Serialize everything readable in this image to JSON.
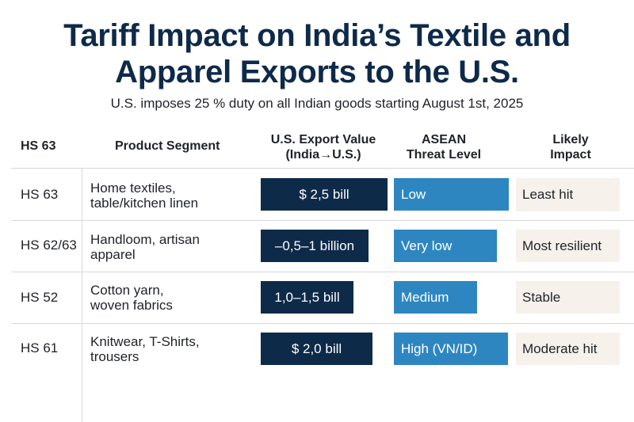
{
  "title_line1": "Tariff Impact on India’s Textile and",
  "title_line2": "Apparel Exports to the U.S.",
  "subtitle": "U.S. imposes 25 % duty on all Indian goods starting August 1st, 2025",
  "headers": {
    "hs": "HS 63",
    "segment": "Product Segment",
    "value_line1": "U.S. Export Value",
    "value_line2": "(India→U.S.)",
    "threat_line1": "ASEAN",
    "threat_line2": "Threat Level",
    "impact_line1": "Likely",
    "impact_line2": "Impact"
  },
  "rows": [
    {
      "hs": "HS 63",
      "segment_line1": "Home textiles,",
      "segment_line2": "table/kitchen linen",
      "value": "$ 2,5 bill",
      "threat": "Low",
      "impact": "Least hit"
    },
    {
      "hs": "HS 62/63",
      "segment_line1": "Handloom, artisan",
      "segment_line2": "apparel",
      "value": "–0,5–1 billion",
      "threat": "Very low",
      "impact": "Most resilient"
    },
    {
      "hs": "HS 52",
      "segment_line1": "Cotton yarn,",
      "segment_line2": "woven fabrics",
      "value": "1,0–1,5 bill",
      "threat": "Medium",
      "impact": "Stable"
    },
    {
      "hs": "HS 61",
      "segment_line1": "Knitwear, T-Shirts,",
      "segment_line2": "trousers",
      "value": "$ 2,0 bill",
      "threat": "High (VN/ID)",
      "impact": "Moderate hit"
    }
  ],
  "colors": {
    "navy": "#0e2a49",
    "threat_blue": "#2e86c1",
    "impact_bg": "#f6f1eb"
  }
}
